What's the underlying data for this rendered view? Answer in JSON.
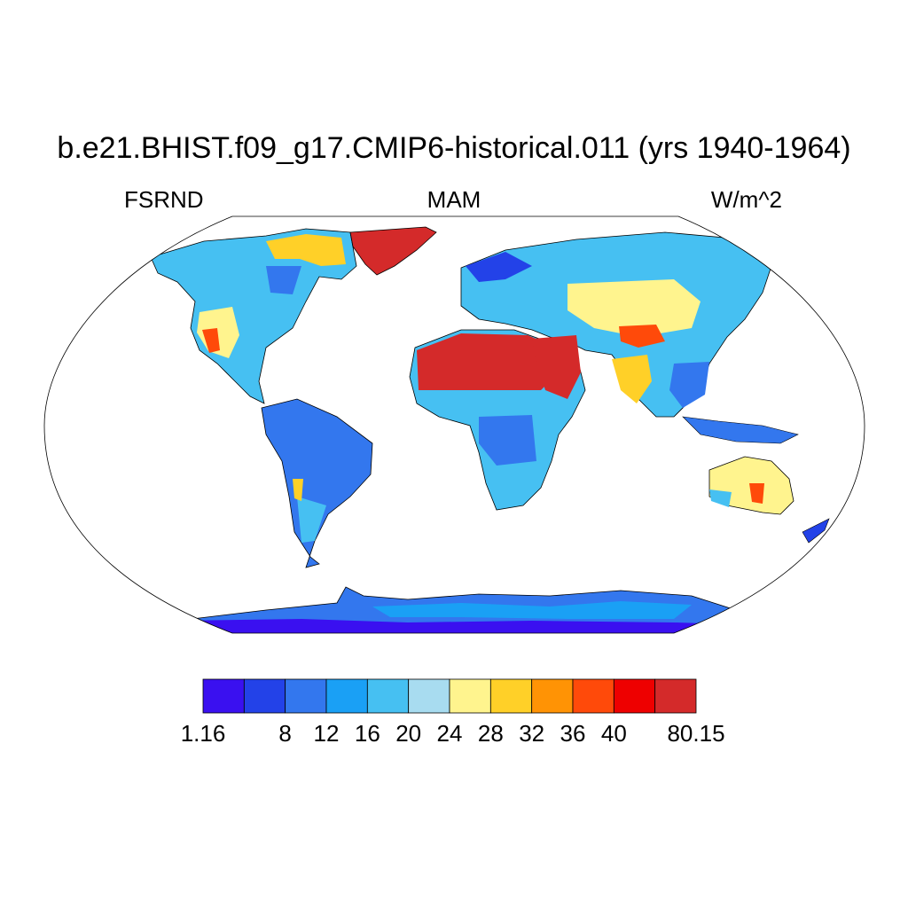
{
  "title": "b.e21.BHIST.f09_g17.CMIP6-historical.011 (yrs 1940-1964)",
  "left_label": "FSRND",
  "center_label": "MAM",
  "right_label": "W/m^2",
  "colorbar": {
    "colors": [
      "#3a10f0",
      "#2342e8",
      "#3377ee",
      "#1aa0f5",
      "#46c0f2",
      "#a8dcf0",
      "#fff48e",
      "#ffd028",
      "#ff9305",
      "#ff4a0a",
      "#ee0000",
      "#d42a2a"
    ],
    "labels": [
      "1.16",
      "8",
      "12",
      "16",
      "20",
      "24",
      "28",
      "32",
      "36",
      "40",
      "80.15"
    ]
  },
  "regions": [
    {
      "name": "Greenland",
      "color": "#d42a2a"
    },
    {
      "name": "Sahara and Arabia",
      "color": "#d42a2a"
    },
    {
      "name": "Antarctica",
      "color": "#3377ee"
    }
  ]
}
